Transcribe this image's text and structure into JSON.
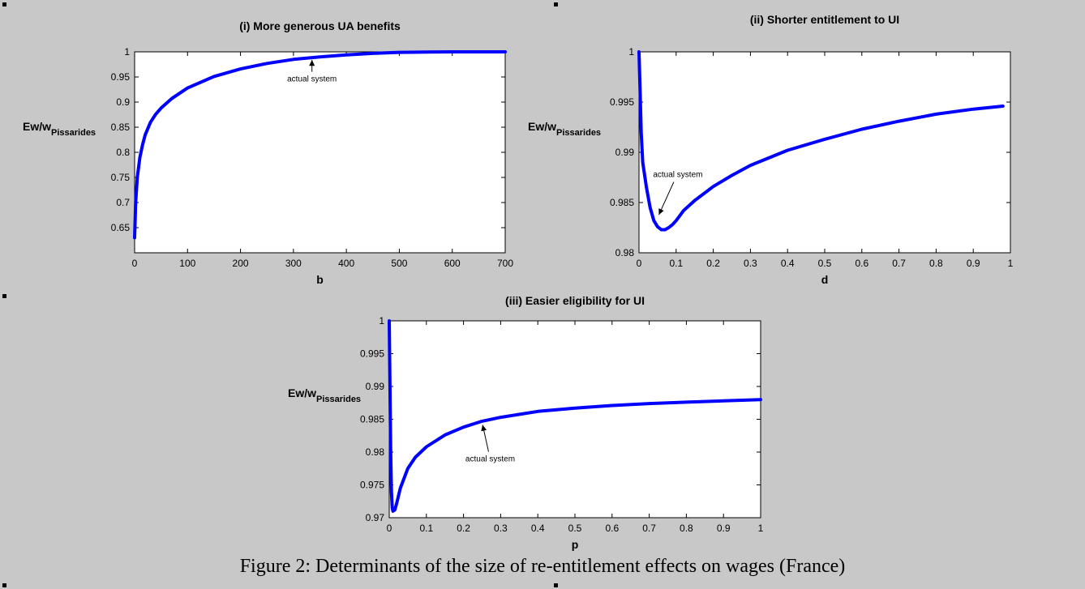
{
  "caption": "Figure 2: Determinants of the size of re-entitlement effects on wages (France)",
  "colors": {
    "line": "#0000ff",
    "background": "#c8c8c8",
    "plot": "#ffffff"
  },
  "chart_data": [
    {
      "type": "line",
      "title": "(i) More generous UA benefits",
      "xlabel": "b",
      "ylabel_main": "Ew/w",
      "ylabel_sub": "Pissarides",
      "xlim": [
        0,
        700
      ],
      "ylim": [
        0.6,
        1.0
      ],
      "xticks": [
        0,
        100,
        200,
        300,
        400,
        500,
        600,
        700
      ],
      "yticks": [
        0.65,
        0.7,
        0.75,
        0.8,
        0.85,
        0.9,
        0.95,
        1
      ],
      "ytick_labels": [
        "0.65",
        "0.7",
        "0.75",
        "0.8",
        "0.85",
        "0.9",
        "0.95",
        "1"
      ],
      "annotation": {
        "text": "actual system",
        "x": 335,
        "y": 0.986
      },
      "series": [
        {
          "x": [
            0,
            2,
            5,
            10,
            15,
            20,
            30,
            40,
            50,
            70,
            100,
            150,
            200,
            250,
            300,
            350,
            400,
            450,
            500,
            550,
            600,
            650,
            700
          ],
          "y": [
            0.63,
            0.7,
            0.75,
            0.79,
            0.815,
            0.835,
            0.86,
            0.876,
            0.888,
            0.907,
            0.928,
            0.951,
            0.966,
            0.977,
            0.985,
            0.99,
            0.994,
            0.997,
            0.999,
            0.9995,
            1.0,
            1.0,
            1.0
          ]
        }
      ]
    },
    {
      "type": "line",
      "title": "(ii) Shorter entitlement to UI",
      "xlabel": "d",
      "ylabel_main": "Ew/w",
      "ylabel_sub": "Pissarides",
      "xlim": [
        0,
        1
      ],
      "ylim": [
        0.98,
        1.0
      ],
      "xticks": [
        0,
        0.1,
        0.2,
        0.3,
        0.4,
        0.5,
        0.6,
        0.7,
        0.8,
        0.9,
        1
      ],
      "yticks": [
        0.98,
        0.985,
        0.99,
        0.995,
        1
      ],
      "ytick_labels": [
        "0.98",
        "0.985",
        "0.99",
        "0.995",
        "1"
      ],
      "annotation": {
        "text": "actual system",
        "x": 0.05,
        "y": 0.9835
      },
      "series": [
        {
          "x": [
            0.0,
            0.003,
            0.006,
            0.01,
            0.02,
            0.03,
            0.04,
            0.05,
            0.06,
            0.07,
            0.08,
            0.09,
            0.1,
            0.12,
            0.15,
            0.2,
            0.25,
            0.3,
            0.4,
            0.5,
            0.6,
            0.7,
            0.8,
            0.9,
            0.98
          ],
          "y": [
            1.0,
            0.996,
            0.992,
            0.989,
            0.9865,
            0.9845,
            0.9832,
            0.9826,
            0.9823,
            0.9823,
            0.9825,
            0.9828,
            0.9832,
            0.9842,
            0.9852,
            0.9866,
            0.9877,
            0.9887,
            0.9902,
            0.9913,
            0.9923,
            0.9931,
            0.9938,
            0.9943,
            0.9946
          ]
        }
      ]
    },
    {
      "type": "line",
      "title": "(iii) Easier eligibility for UI",
      "xlabel": "p",
      "ylabel_main": "Ew/w",
      "ylabel_sub": "Pissarides",
      "xlim": [
        0,
        1
      ],
      "ylim": [
        0.97,
        1.0
      ],
      "xticks": [
        0,
        0.1,
        0.2,
        0.3,
        0.4,
        0.5,
        0.6,
        0.7,
        0.8,
        0.9,
        1
      ],
      "yticks": [
        0.97,
        0.975,
        0.98,
        0.985,
        0.99,
        0.995,
        1
      ],
      "ytick_labels": [
        "0.97",
        "0.975",
        "0.98",
        "0.985",
        "0.99",
        "0.995",
        "1"
      ],
      "annotation": {
        "text": "actual system",
        "x": 0.25,
        "y": 0.9845
      },
      "series": [
        {
          "x": [
            0.0,
            0.002,
            0.004,
            0.006,
            0.008,
            0.01,
            0.015,
            0.02,
            0.03,
            0.05,
            0.07,
            0.1,
            0.15,
            0.2,
            0.25,
            0.3,
            0.4,
            0.5,
            0.6,
            0.7,
            0.8,
            0.9,
            1.0
          ],
          "y": [
            1.0,
            0.99,
            0.98,
            0.974,
            0.9715,
            0.971,
            0.9712,
            0.9722,
            0.9745,
            0.9775,
            0.9792,
            0.9808,
            0.9826,
            0.9838,
            0.9847,
            0.9853,
            0.9862,
            0.9867,
            0.9871,
            0.9874,
            0.9876,
            0.9878,
            0.988
          ]
        }
      ]
    }
  ]
}
